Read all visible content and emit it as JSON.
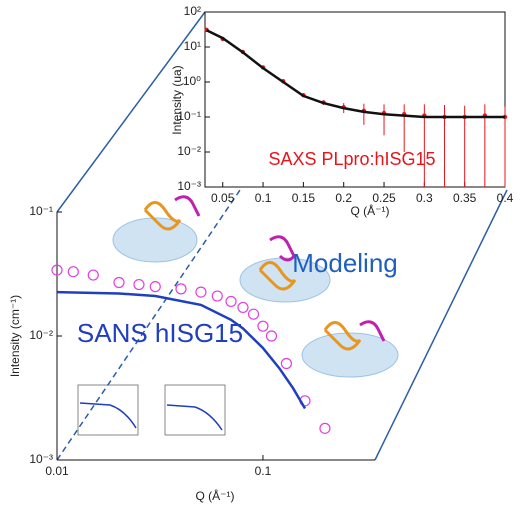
{
  "chart_data": [
    {
      "type": "line",
      "annotation": "SAXS PLpro:hISG15",
      "xlabel": "Q (Å⁻¹)",
      "ylabel": "Intensity (ua)",
      "yscale": "log",
      "xlim": [
        0.028,
        0.4
      ],
      "ylim": [
        0.001,
        100
      ],
      "xticks": [
        0.05,
        0.1,
        0.15,
        0.2,
        0.25,
        0.3,
        0.35,
        0.4
      ],
      "yticks": [
        {
          "value": 100,
          "label": "10²"
        },
        {
          "value": 10,
          "label": "10¹"
        },
        {
          "value": 1,
          "label": "10⁰"
        },
        {
          "value": 0.1,
          "label": "10⁻¹"
        },
        {
          "value": 0.01,
          "label": "10⁻²"
        },
        {
          "value": 0.001,
          "label": "10⁻³"
        }
      ],
      "x": [
        0.03,
        0.05,
        0.075,
        0.1,
        0.125,
        0.15,
        0.175,
        0.2,
        0.225,
        0.25,
        0.275,
        0.3,
        0.325,
        0.35,
        0.375,
        0.4
      ],
      "series": [
        {
          "style": "errorbar",
          "color": "#e8141b",
          "values": [
            31,
            17,
            7.2,
            2.6,
            1.05,
            0.42,
            0.26,
            0.19,
            0.15,
            0.13,
            0.12,
            0.11,
            0.1,
            0.1,
            0.11,
            0.1
          ],
          "errors": [
            0.5,
            0.3,
            0.1,
            0.05,
            0.03,
            0.03,
            0.04,
            0.06,
            0.09,
            0.1,
            0.11,
            0.12,
            0.12,
            0.11,
            0.12,
            0.1
          ]
        },
        {
          "style": "line",
          "color": "#111111",
          "values": [
            30,
            18,
            7,
            2.5,
            1,
            0.4,
            0.25,
            0.18,
            0.14,
            0.12,
            0.11,
            0.1,
            0.1,
            0.1,
            0.1,
            0.1
          ]
        }
      ]
    },
    {
      "type": "scatter",
      "annotation": "SANS hISG15",
      "xlabel": "Q (Å⁻¹)",
      "ylabel": "Intensity (cm⁻¹)",
      "xscale": "log",
      "yscale": "log",
      "xlim": [
        0.01,
        0.35
      ],
      "ylim": [
        0.001,
        0.1
      ],
      "xticks": [
        0.01,
        0.1
      ],
      "yticks": [
        {
          "value": 0.1,
          "label": "10⁻¹"
        },
        {
          "value": 0.01,
          "label": "10⁻²"
        },
        {
          "value": 0.001,
          "label": "10⁻³"
        }
      ],
      "series": [
        {
          "style": "circles",
          "color": "#e040e0",
          "x": [
            0.01,
            0.012,
            0.015,
            0.02,
            0.025,
            0.03,
            0.04,
            0.05,
            0.06,
            0.07,
            0.08,
            0.09,
            0.1,
            0.11,
            0.13,
            0.16,
            0.2
          ],
          "values": [
            0.034,
            0.033,
            0.031,
            0.027,
            0.026,
            0.025,
            0.024,
            0.0226,
            0.021,
            0.019,
            0.017,
            0.015,
            0.012,
            0.01,
            0.006,
            0.003,
            0.0018
          ]
        },
        {
          "style": "line",
          "color": "#1f3fbf",
          "x": [
            0.01,
            0.02,
            0.03,
            0.05,
            0.07,
            0.08,
            0.1,
            0.12,
            0.14,
            0.16
          ],
          "values": [
            0.0226,
            0.022,
            0.021,
            0.0178,
            0.0135,
            0.0115,
            0.008,
            0.0055,
            0.0038,
            0.0026
          ]
        }
      ]
    }
  ],
  "annotations": {
    "modeling": "Modeling"
  }
}
